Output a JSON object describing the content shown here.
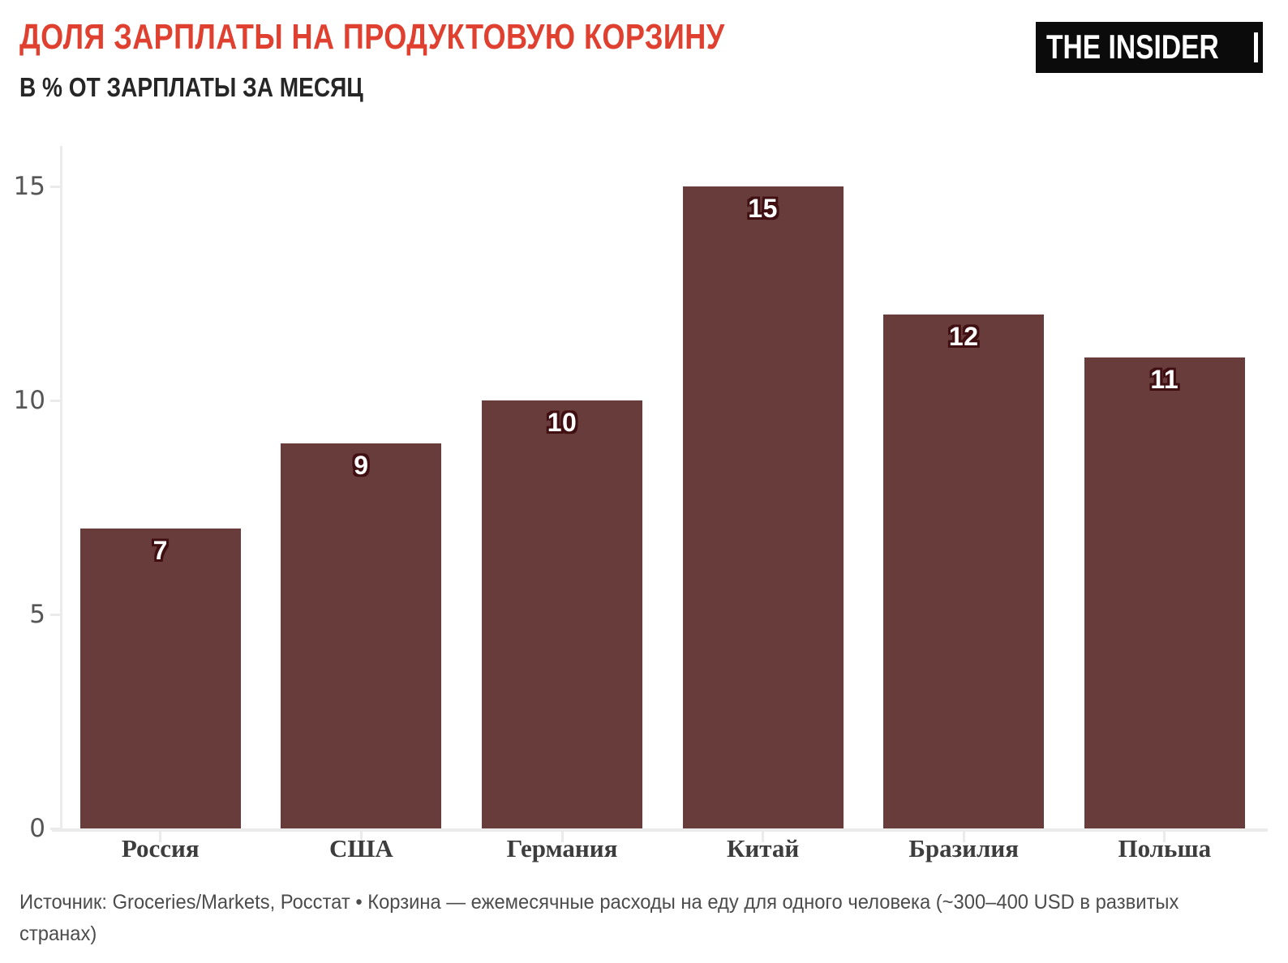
{
  "header": {
    "logo_text": "THE INSIDER"
  },
  "chart_data": {
    "type": "bar",
    "title": "ДОЛЯ ЗАРПЛАТЫ НА ПРОДУКТОВУЮ КОРЗИНУ",
    "subtitle": "В % ОТ ЗАРПЛАТЫ ЗА МЕСЯЦ",
    "categories": [
      "Россия",
      "США",
      "Германия",
      "Китай",
      "Бразилия",
      "Польша"
    ],
    "values": [
      7,
      9,
      10,
      15,
      12,
      11
    ],
    "xlabel": "",
    "ylabel": "",
    "ylim": [
      0,
      16
    ],
    "yticks": [
      0,
      5,
      10,
      15
    ],
    "grid": false,
    "legend": false,
    "bar_value_labels_shown": true,
    "colors": {
      "title": "#e0402f",
      "subtitle": "#262626",
      "bar": "#693c3c",
      "bar_label_text": "#ffffff",
      "bar_label_outline": "#3f0f12",
      "axis": "#ebebeb",
      "ytick_label": "#565656",
      "category_label": "#3d3d3d",
      "logo_background": "#0b0b0b",
      "logo_text": "#ffffff",
      "source_text": "#4c4c4c"
    }
  },
  "footer": {
    "source": "Источник: Groceries/Markets, Росстат • Корзина — ежемесячные расходы на еду для одного человека (~300–400 USD в развитых странах)"
  }
}
